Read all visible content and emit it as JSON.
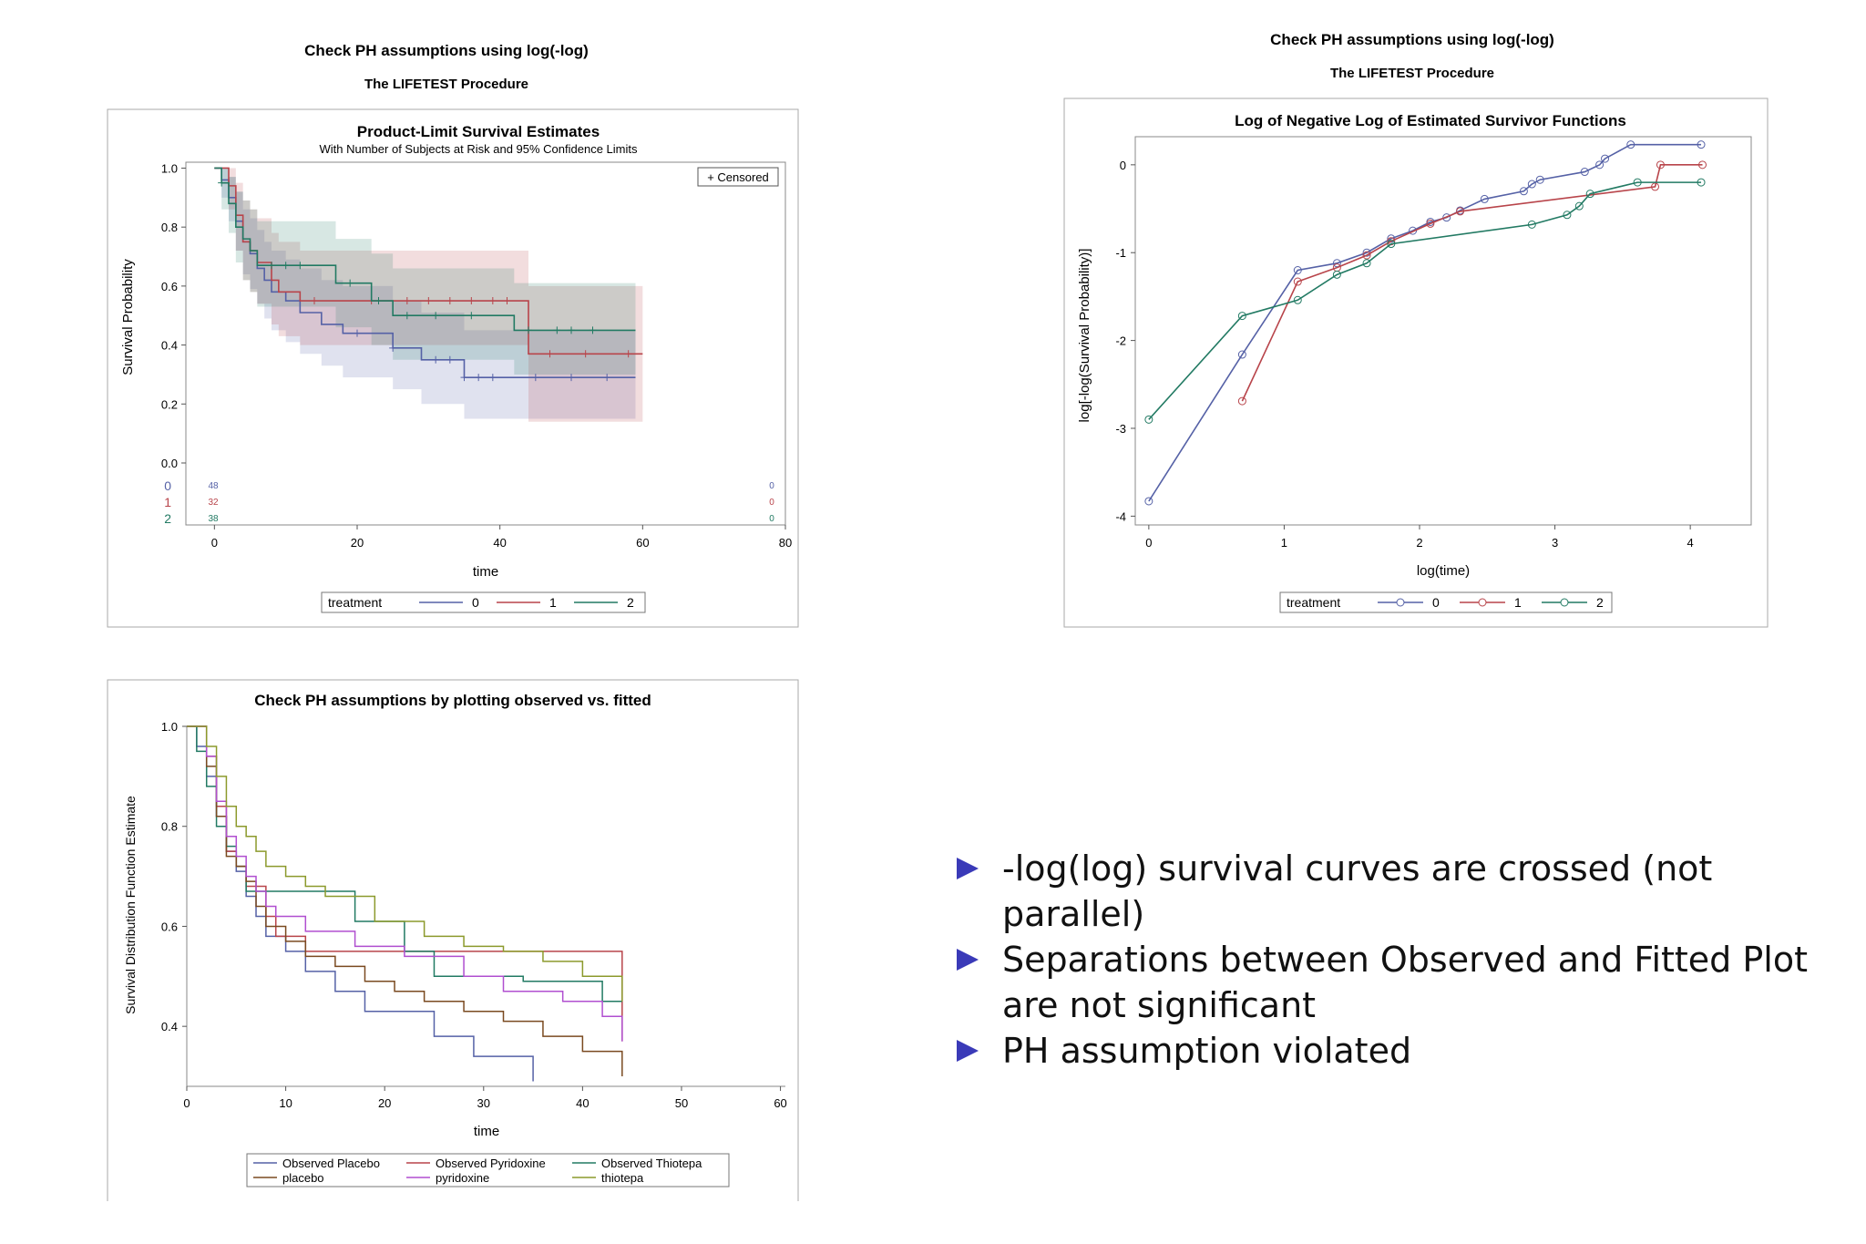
{
  "headings": {
    "left_title": "Check PH assumptions using log(-log)",
    "left_subtitle": "The LIFETEST Procedure",
    "right_title": "Check PH assumptions using log(-log)",
    "right_subtitle": "The LIFETEST Procedure"
  },
  "colors": {
    "g0": "#5561a6",
    "g1": "#b8444a",
    "g2": "#227a63",
    "placebo": "#7a4a20",
    "pyridoxine": "#b04fd0",
    "thiotepa": "#8c9a2c"
  },
  "chart_data": [
    {
      "id": "km",
      "type": "line",
      "title": "Product-Limit Survival Estimates",
      "subtitle": "With Number of Subjects at Risk and 95% Confidence Limits",
      "xlabel": "time",
      "ylabel": "Survival Probability",
      "xlim": [
        -4,
        80
      ],
      "ylim": [
        0,
        1.02
      ],
      "xticks": [
        0,
        20,
        40,
        60,
        80
      ],
      "yticks": [
        "0.0",
        "0.2",
        "0.4",
        "0.6",
        "0.8",
        "1.0"
      ],
      "censored_label": "+ Censored",
      "legend_title": "treatment",
      "at_risk": [
        {
          "group": "0",
          "start": "48",
          "end": "0"
        },
        {
          "group": "1",
          "start": "32",
          "end": "0"
        },
        {
          "group": "2",
          "start": "38",
          "end": "0"
        }
      ],
      "series": [
        {
          "name": "0",
          "color": "#5561a6",
          "x": [
            0,
            1,
            2,
            3,
            4,
            5,
            6,
            7,
            8,
            10,
            12,
            15,
            18,
            25,
            29,
            35,
            59
          ],
          "y": [
            1.0,
            0.96,
            0.9,
            0.82,
            0.75,
            0.71,
            0.66,
            0.62,
            0.58,
            0.55,
            0.51,
            0.47,
            0.44,
            0.39,
            0.35,
            0.29,
            0.29
          ],
          "lower": [
            1.0,
            0.9,
            0.82,
            0.72,
            0.64,
            0.59,
            0.54,
            0.49,
            0.45,
            0.41,
            0.37,
            0.33,
            0.29,
            0.25,
            0.2,
            0.15,
            0.15
          ],
          "upper": [
            1.0,
            1.0,
            0.97,
            0.92,
            0.86,
            0.83,
            0.79,
            0.75,
            0.72,
            0.69,
            0.66,
            0.62,
            0.6,
            0.55,
            0.51,
            0.45,
            0.45
          ],
          "censor_x": [
            20,
            25,
            31,
            33,
            35,
            37,
            39,
            45,
            50,
            55
          ]
        },
        {
          "name": "1",
          "color": "#b8444a",
          "x": [
            0,
            2,
            3,
            4,
            5,
            6,
            8,
            9,
            12,
            44,
            60
          ],
          "y": [
            1.0,
            0.94,
            0.84,
            0.75,
            0.72,
            0.68,
            0.62,
            0.58,
            0.55,
            0.37,
            0.37
          ],
          "lower": [
            1.0,
            0.86,
            0.72,
            0.62,
            0.58,
            0.54,
            0.47,
            0.43,
            0.4,
            0.14,
            0.14
          ],
          "upper": [
            1.0,
            1.0,
            0.95,
            0.89,
            0.86,
            0.83,
            0.78,
            0.75,
            0.72,
            0.6,
            0.6
          ],
          "censor_x": [
            14,
            22,
            27,
            30,
            33,
            36,
            39,
            41,
            47,
            52,
            58
          ]
        },
        {
          "name": "2",
          "color": "#227a63",
          "x": [
            0,
            1,
            2,
            3,
            4,
            5,
            6,
            9,
            17,
            22,
            25,
            34,
            42,
            59
          ],
          "y": [
            1.0,
            0.95,
            0.88,
            0.8,
            0.76,
            0.72,
            0.67,
            0.67,
            0.61,
            0.55,
            0.5,
            0.5,
            0.45,
            0.45
          ],
          "lower": [
            1.0,
            0.86,
            0.78,
            0.68,
            0.62,
            0.58,
            0.53,
            0.53,
            0.46,
            0.4,
            0.35,
            0.35,
            0.3,
            0.3
          ],
          "upper": [
            1.0,
            1.0,
            0.97,
            0.92,
            0.89,
            0.86,
            0.82,
            0.82,
            0.76,
            0.71,
            0.66,
            0.66,
            0.61,
            0.61
          ],
          "censor_x": [
            1,
            8,
            10,
            12,
            19,
            23,
            27,
            31,
            36,
            44,
            48,
            50,
            53
          ]
        }
      ]
    },
    {
      "id": "loglog",
      "type": "line",
      "title": "Log of Negative Log of Estimated Survivor Functions",
      "xlabel": "log(time)",
      "ylabel": "log[-log(Survival Probability)]",
      "xlim": [
        -0.1,
        4.45
      ],
      "ylim": [
        -4.1,
        0.32
      ],
      "xticks": [
        0,
        1,
        2,
        3,
        4
      ],
      "yticks": [
        0,
        -1,
        -2,
        -3,
        -4
      ],
      "legend_title": "treatment",
      "series": [
        {
          "name": "0",
          "color": "#5561a6",
          "x": [
            0,
            0.69,
            1.1,
            1.39,
            1.61,
            1.79,
            1.95,
            2.08,
            2.2,
            2.3,
            2.48,
            2.77,
            2.83,
            2.89,
            3.22,
            3.33,
            3.37,
            3.56,
            4.08
          ],
          "y": [
            -3.83,
            -2.16,
            -1.2,
            -1.12,
            -1.0,
            -0.84,
            -0.75,
            -0.65,
            -0.6,
            -0.52,
            -0.39,
            -0.3,
            -0.22,
            -0.17,
            -0.08,
            0.0,
            0.07,
            0.23,
            0.23
          ]
        },
        {
          "name": "1",
          "color": "#b8444a",
          "x": [
            0.69,
            1.1,
            1.39,
            1.61,
            1.79,
            2.08,
            2.3,
            3.74,
            3.78,
            4.09
          ],
          "y": [
            -2.69,
            -1.33,
            -1.17,
            -1.03,
            -0.87,
            -0.67,
            -0.53,
            -0.25,
            0.0,
            0.0
          ]
        },
        {
          "name": "2",
          "color": "#227a63",
          "x": [
            0,
            0.69,
            1.1,
            1.39,
            1.61,
            1.79,
            2.83,
            3.09,
            3.18,
            3.26,
            3.61,
            4.08
          ],
          "y": [
            -2.9,
            -1.72,
            -1.54,
            -1.25,
            -1.12,
            -0.9,
            -0.68,
            -0.57,
            -0.47,
            -0.33,
            -0.2,
            -0.2
          ]
        }
      ]
    },
    {
      "id": "obsfit",
      "type": "line",
      "title": "Check PH assumptions by plotting observed vs. fitted",
      "xlabel": "time",
      "ylabel": "Survival Distribution Function Estimate",
      "xlim": [
        0,
        60.5
      ],
      "ylim": [
        0.28,
        1.0
      ],
      "xticks": [
        0,
        10,
        20,
        30,
        40,
        50,
        60
      ],
      "yticks": [
        "0.4",
        "0.6",
        "0.8",
        "1.0"
      ],
      "series": [
        {
          "name": "Observed Placebo",
          "color": "#5561a6",
          "x": [
            0,
            1,
            2,
            3,
            4,
            5,
            6,
            7,
            8,
            10,
            12,
            15,
            18,
            25,
            29,
            35,
            35
          ],
          "y": [
            1.0,
            0.96,
            0.9,
            0.82,
            0.75,
            0.71,
            0.66,
            0.62,
            0.58,
            0.55,
            0.51,
            0.47,
            0.43,
            0.38,
            0.34,
            0.34,
            0.29
          ]
        },
        {
          "name": "Observed Pyridoxine",
          "color": "#b8444a",
          "x": [
            0,
            2,
            3,
            4,
            5,
            6,
            8,
            9,
            12,
            42,
            44
          ],
          "y": [
            1.0,
            0.94,
            0.84,
            0.75,
            0.72,
            0.68,
            0.62,
            0.58,
            0.55,
            0.55,
            0.37
          ]
        },
        {
          "name": "Observed Thiotepa",
          "color": "#227a63",
          "x": [
            0,
            1,
            2,
            3,
            4,
            5,
            6,
            9,
            17,
            22,
            25,
            34,
            42,
            44
          ],
          "y": [
            1.0,
            0.95,
            0.88,
            0.8,
            0.76,
            0.72,
            0.67,
            0.67,
            0.61,
            0.55,
            0.5,
            0.49,
            0.45,
            0.45
          ]
        },
        {
          "name": "placebo",
          "color": "#7a4a20",
          "x": [
            0,
            2,
            3,
            4,
            5,
            6,
            7,
            8,
            10,
            12,
            15,
            18,
            21,
            24,
            28,
            32,
            36,
            40,
            44,
            44
          ],
          "y": [
            1.0,
            0.92,
            0.82,
            0.74,
            0.72,
            0.69,
            0.64,
            0.6,
            0.57,
            0.54,
            0.52,
            0.49,
            0.47,
            0.45,
            0.43,
            0.41,
            0.38,
            0.35,
            0.32,
            0.3
          ]
        },
        {
          "name": "pyridoxine",
          "color": "#b04fd0",
          "x": [
            0,
            2,
            3,
            4,
            5,
            6,
            7,
            8,
            9,
            12,
            17,
            22,
            28,
            32,
            38,
            42,
            44
          ],
          "y": [
            1.0,
            0.94,
            0.85,
            0.78,
            0.74,
            0.7,
            0.67,
            0.64,
            0.62,
            0.59,
            0.56,
            0.54,
            0.5,
            0.47,
            0.45,
            0.42,
            0.37
          ]
        },
        {
          "name": "thiotepa",
          "color": "#8c9a2c",
          "x": [
            0,
            2,
            3,
            4,
            5,
            6,
            7,
            8,
            10,
            12,
            14,
            19,
            24,
            28,
            32,
            36,
            40,
            44
          ],
          "y": [
            1.0,
            0.96,
            0.9,
            0.84,
            0.8,
            0.78,
            0.75,
            0.72,
            0.7,
            0.68,
            0.66,
            0.61,
            0.58,
            0.56,
            0.55,
            0.53,
            0.5,
            0.45
          ]
        }
      ]
    }
  ],
  "bullets": [
    "-log(log) survival curves are crossed (not parallel)",
    "Separations between Observed and Fitted Plot are not significant",
    "PH assumption violated"
  ]
}
